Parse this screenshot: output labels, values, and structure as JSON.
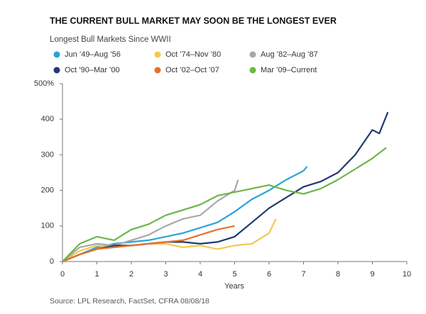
{
  "chart_data": {
    "type": "line",
    "title": "THE CURRENT BULL MARKET MAY SOON BE THE LONGEST EVER",
    "subtitle": "Longest Bull Markets Since WWII",
    "xlabel": "Years",
    "source": "Source: LPL Research, FactSet, CFRA 08/08/18",
    "xlim": [
      0,
      10
    ],
    "ylim": [
      0,
      500
    ],
    "xticks": [
      0,
      1,
      2,
      3,
      4,
      5,
      6,
      7,
      8,
      9,
      10
    ],
    "yticks": [
      0,
      100,
      200,
      300,
      400,
      {
        "value": 500,
        "label": "500%"
      }
    ],
    "grid": false,
    "series": [
      {
        "name": "Jun ’49–Aug ’56",
        "color": "#2aa3da",
        "x": [
          0,
          0.5,
          1,
          1.5,
          2,
          2.5,
          3,
          3.5,
          4,
          4.5,
          5,
          5.5,
          6,
          6.5,
          7,
          7.1
        ],
        "values": [
          0,
          20,
          40,
          50,
          55,
          60,
          70,
          80,
          95,
          110,
          140,
          175,
          200,
          230,
          255,
          267
        ]
      },
      {
        "name": "Oct ’74–Nov ’80",
        "color": "#f3c94c",
        "x": [
          0,
          0.5,
          1,
          1.5,
          2,
          2.5,
          3,
          3.5,
          4,
          4.5,
          5,
          5.5,
          6,
          6.2
        ],
        "values": [
          0,
          30,
          45,
          40,
          45,
          50,
          50,
          40,
          45,
          35,
          45,
          50,
          80,
          120
        ]
      },
      {
        "name": "Aug ’82–Aug ’87",
        "color": "#a8a8a8",
        "x": [
          0,
          0.5,
          1,
          1.5,
          2,
          2.5,
          3,
          3.5,
          4,
          4.5,
          5,
          5.1
        ],
        "values": [
          0,
          40,
          50,
          45,
          60,
          75,
          100,
          120,
          130,
          170,
          200,
          230
        ]
      },
      {
        "name": "Oct ’90–Mar ’00",
        "color": "#1f3a6e",
        "x": [
          0,
          0.5,
          1,
          1.5,
          2,
          2.5,
          3,
          3.5,
          4,
          4.5,
          5,
          5.5,
          6,
          6.5,
          7,
          7.5,
          8,
          8.5,
          9,
          9.2,
          9.45
        ],
        "values": [
          0,
          20,
          35,
          45,
          45,
          50,
          55,
          55,
          50,
          55,
          70,
          110,
          150,
          180,
          210,
          225,
          250,
          300,
          370,
          360,
          420
        ]
      },
      {
        "name": "Oct ’02–Oct ’07",
        "color": "#e8702a",
        "x": [
          0,
          0.5,
          1,
          1.5,
          2,
          2.5,
          3,
          3.5,
          4,
          4.5,
          5
        ],
        "values": [
          0,
          20,
          35,
          40,
          45,
          50,
          55,
          60,
          75,
          90,
          100
        ]
      },
      {
        "name": "Mar ’09–Current",
        "color": "#6ab747",
        "x": [
          0,
          0.5,
          1,
          1.5,
          2,
          2.5,
          3,
          3.5,
          4,
          4.5,
          5,
          5.5,
          6,
          6.5,
          7,
          7.5,
          8,
          8.5,
          9,
          9.4
        ],
        "values": [
          0,
          50,
          70,
          60,
          90,
          105,
          130,
          145,
          160,
          185,
          195,
          205,
          215,
          200,
          190,
          205,
          230,
          260,
          290,
          320
        ]
      }
    ]
  }
}
